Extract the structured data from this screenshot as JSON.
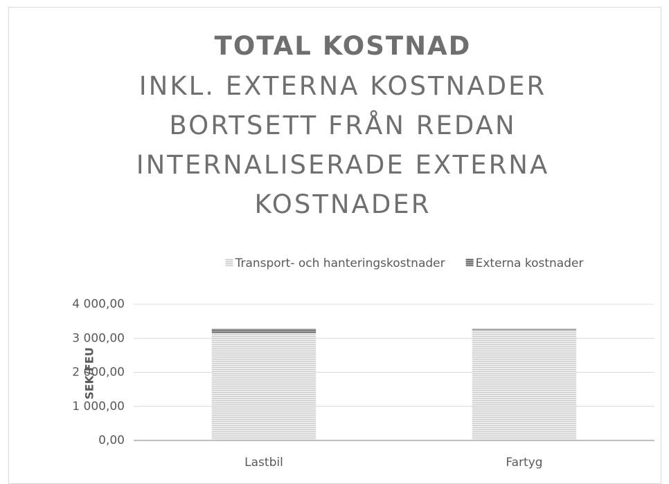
{
  "chart_data": {
    "type": "stacked_bar",
    "title": "TOTAL KOSTNAD",
    "subtitle": "INKL. EXTERNA KOSTNADER BORTSETT FRÅN REDAN INTERNALISERADE EXTERNA KOSTNADER",
    "y_label": "SEK/FEU",
    "categories": [
      "Lastbil",
      "Fartyg"
    ],
    "series": [
      {
        "name": "Transport- och hanteringskostnader",
        "color": "#d9d9d9",
        "values": [
          3150,
          3240
        ]
      },
      {
        "name": "Externa kostnader",
        "color": "#7f7f7f",
        "values": [
          130,
          40
        ]
      }
    ],
    "ylim": [
      0,
      4000
    ],
    "yticks": [
      {
        "value": 0,
        "label": "0,00"
      },
      {
        "value": 1000,
        "label": "1 000,00"
      },
      {
        "value": 2000,
        "label": "2 000,00"
      },
      {
        "value": 3000,
        "label": "3 000,00"
      },
      {
        "value": 4000,
        "label": "4 000,00"
      }
    ],
    "grid": true,
    "legend": "top"
  }
}
